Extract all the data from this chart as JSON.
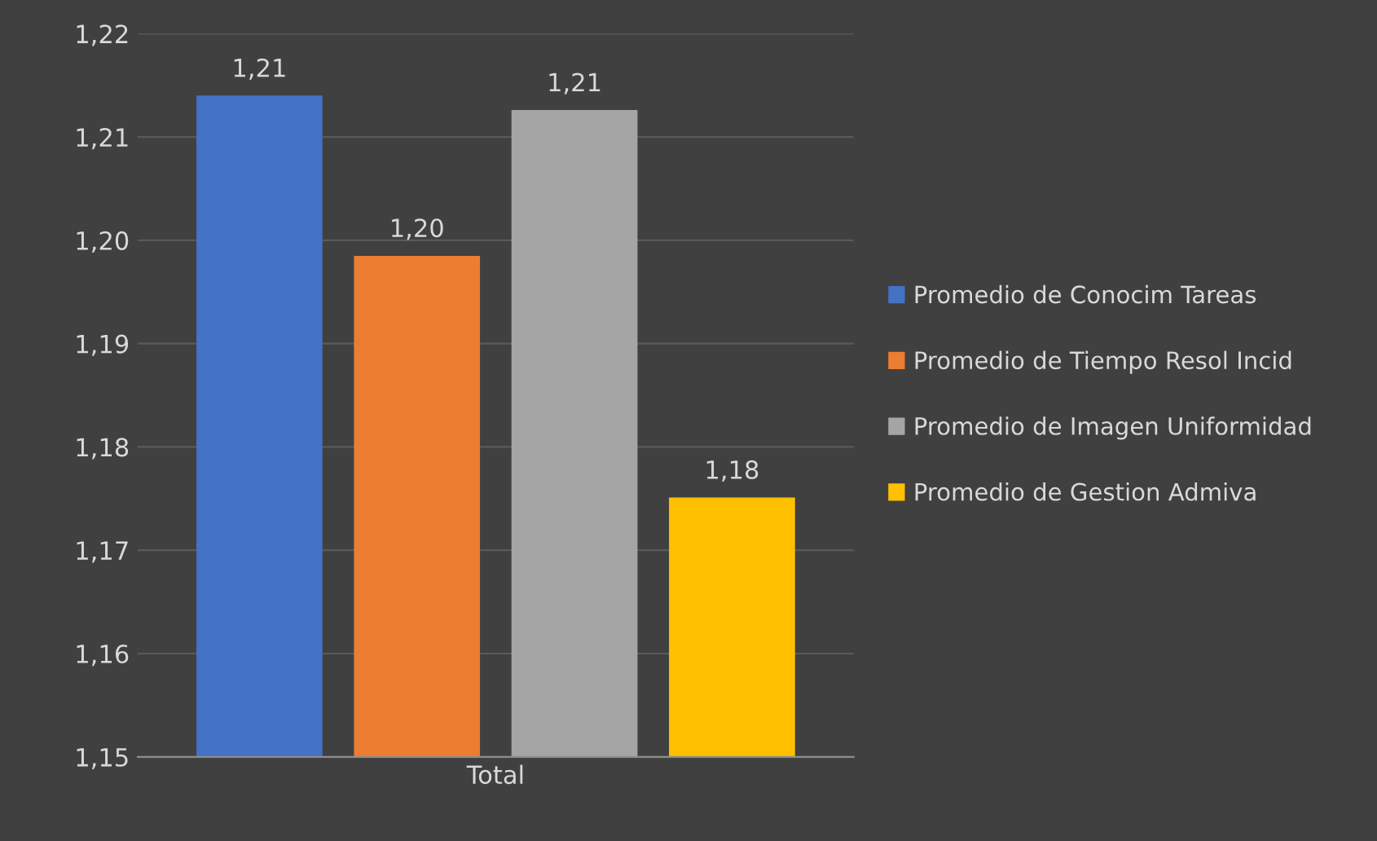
{
  "chart_data": {
    "type": "bar",
    "categories": [
      "Total"
    ],
    "series": [
      {
        "name": "Promedio de Conocim Tareas",
        "color": "#4472c4",
        "values": [
          1.214
        ],
        "value_labels": [
          "1,21"
        ]
      },
      {
        "name": "Promedio de Tiempo Resol Incid",
        "color": "#ed7d31",
        "values": [
          1.1985
        ],
        "value_labels": [
          "1,20"
        ]
      },
      {
        "name": "Promedio de Imagen Uniformidad",
        "color": "#a5a5a5",
        "values": [
          1.2126
        ],
        "value_labels": [
          "1,21"
        ]
      },
      {
        "name": "Promedio de Gestion Admiva",
        "color": "#ffc000",
        "values": [
          1.1751
        ],
        "value_labels": [
          "1,18"
        ]
      }
    ],
    "ylim": [
      1.15,
      1.22
    ],
    "yticks": [
      {
        "value": 1.15,
        "label": "1,15"
      },
      {
        "value": 1.16,
        "label": "1,16"
      },
      {
        "value": 1.17,
        "label": "1,17"
      },
      {
        "value": 1.18,
        "label": "1,18"
      },
      {
        "value": 1.19,
        "label": "1,19"
      },
      {
        "value": 1.2,
        "label": "1,20"
      },
      {
        "value": 1.21,
        "label": "1,21"
      },
      {
        "value": 1.22,
        "label": "1,22"
      }
    ],
    "grid": "y",
    "legend": "right"
  }
}
